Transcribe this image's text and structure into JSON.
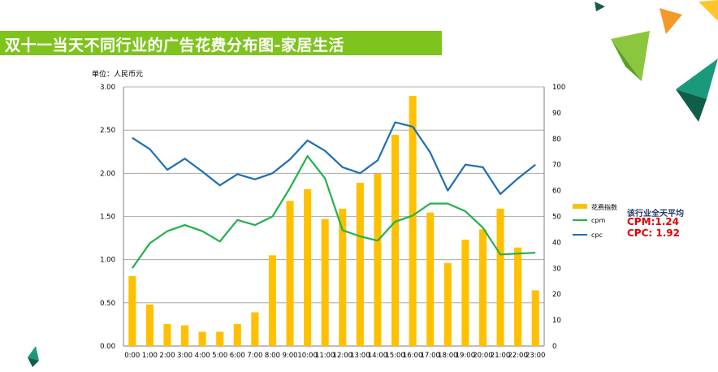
{
  "title": "双十一当天不同行业的广告花费分布图-家居生活",
  "average": {
    "title": "该行业全天平均",
    "cpm": "CPM:1.24",
    "cpc": "CPC: 1.92"
  },
  "colors": {
    "bar": "#ffc000",
    "cpm": "#21b14a",
    "cpc": "#1f6eb5",
    "title_bg": "#7fc31f"
  },
  "chart_data": {
    "type": "bar",
    "unit_label": "单位：人民币元",
    "categories": [
      "0:00",
      "1:00",
      "2:00",
      "3:00",
      "4:00",
      "5:00",
      "6:00",
      "7:00",
      "8:00",
      "9:00",
      "10:00",
      "11:00",
      "12:00",
      "13:00",
      "14:00",
      "15:00",
      "16:00",
      "17:00",
      "18:00",
      "19:00",
      "20:00",
      "21:00",
      "22:00",
      "23:00"
    ],
    "left_axis": {
      "min": 0,
      "max": 3,
      "ticks": [
        "0.00",
        "0.50",
        "1.00",
        "1.50",
        "2.00",
        "2.50",
        "3.00"
      ]
    },
    "right_axis": {
      "min": 0,
      "max": 100,
      "ticks": [
        "0",
        "10",
        "20",
        "30",
        "40",
        "50",
        "60",
        "70",
        "80",
        "90",
        "100"
      ]
    },
    "series": [
      {
        "name": "花费指数",
        "type": "bar",
        "axis": "right",
        "values": [
          27,
          16,
          8.5,
          8,
          5.5,
          5.5,
          8.5,
          13,
          35,
          56,
          60.5,
          49,
          53,
          63,
          66.5,
          81.5,
          96.5,
          51.5,
          32,
          41,
          45,
          53,
          38,
          21.5
        ]
      },
      {
        "name": "cpm",
        "type": "line",
        "axis": "left",
        "values": [
          0.9,
          1.19,
          1.33,
          1.4,
          1.33,
          1.21,
          1.46,
          1.4,
          1.5,
          1.83,
          2.2,
          1.94,
          1.34,
          1.27,
          1.22,
          1.44,
          1.51,
          1.65,
          1.65,
          1.56,
          1.37,
          1.06,
          1.07,
          1.08
        ]
      },
      {
        "name": "cpc",
        "type": "line",
        "axis": "left",
        "values": [
          2.41,
          2.28,
          2.04,
          2.17,
          2.02,
          1.86,
          1.99,
          1.93,
          2.0,
          2.16,
          2.38,
          2.26,
          2.07,
          2.0,
          2.15,
          2.59,
          2.54,
          2.24,
          1.8,
          2.1,
          2.07,
          1.76,
          1.94,
          2.1
        ]
      }
    ],
    "legend": [
      "花费指数",
      "cpm",
      "cpc"
    ]
  }
}
